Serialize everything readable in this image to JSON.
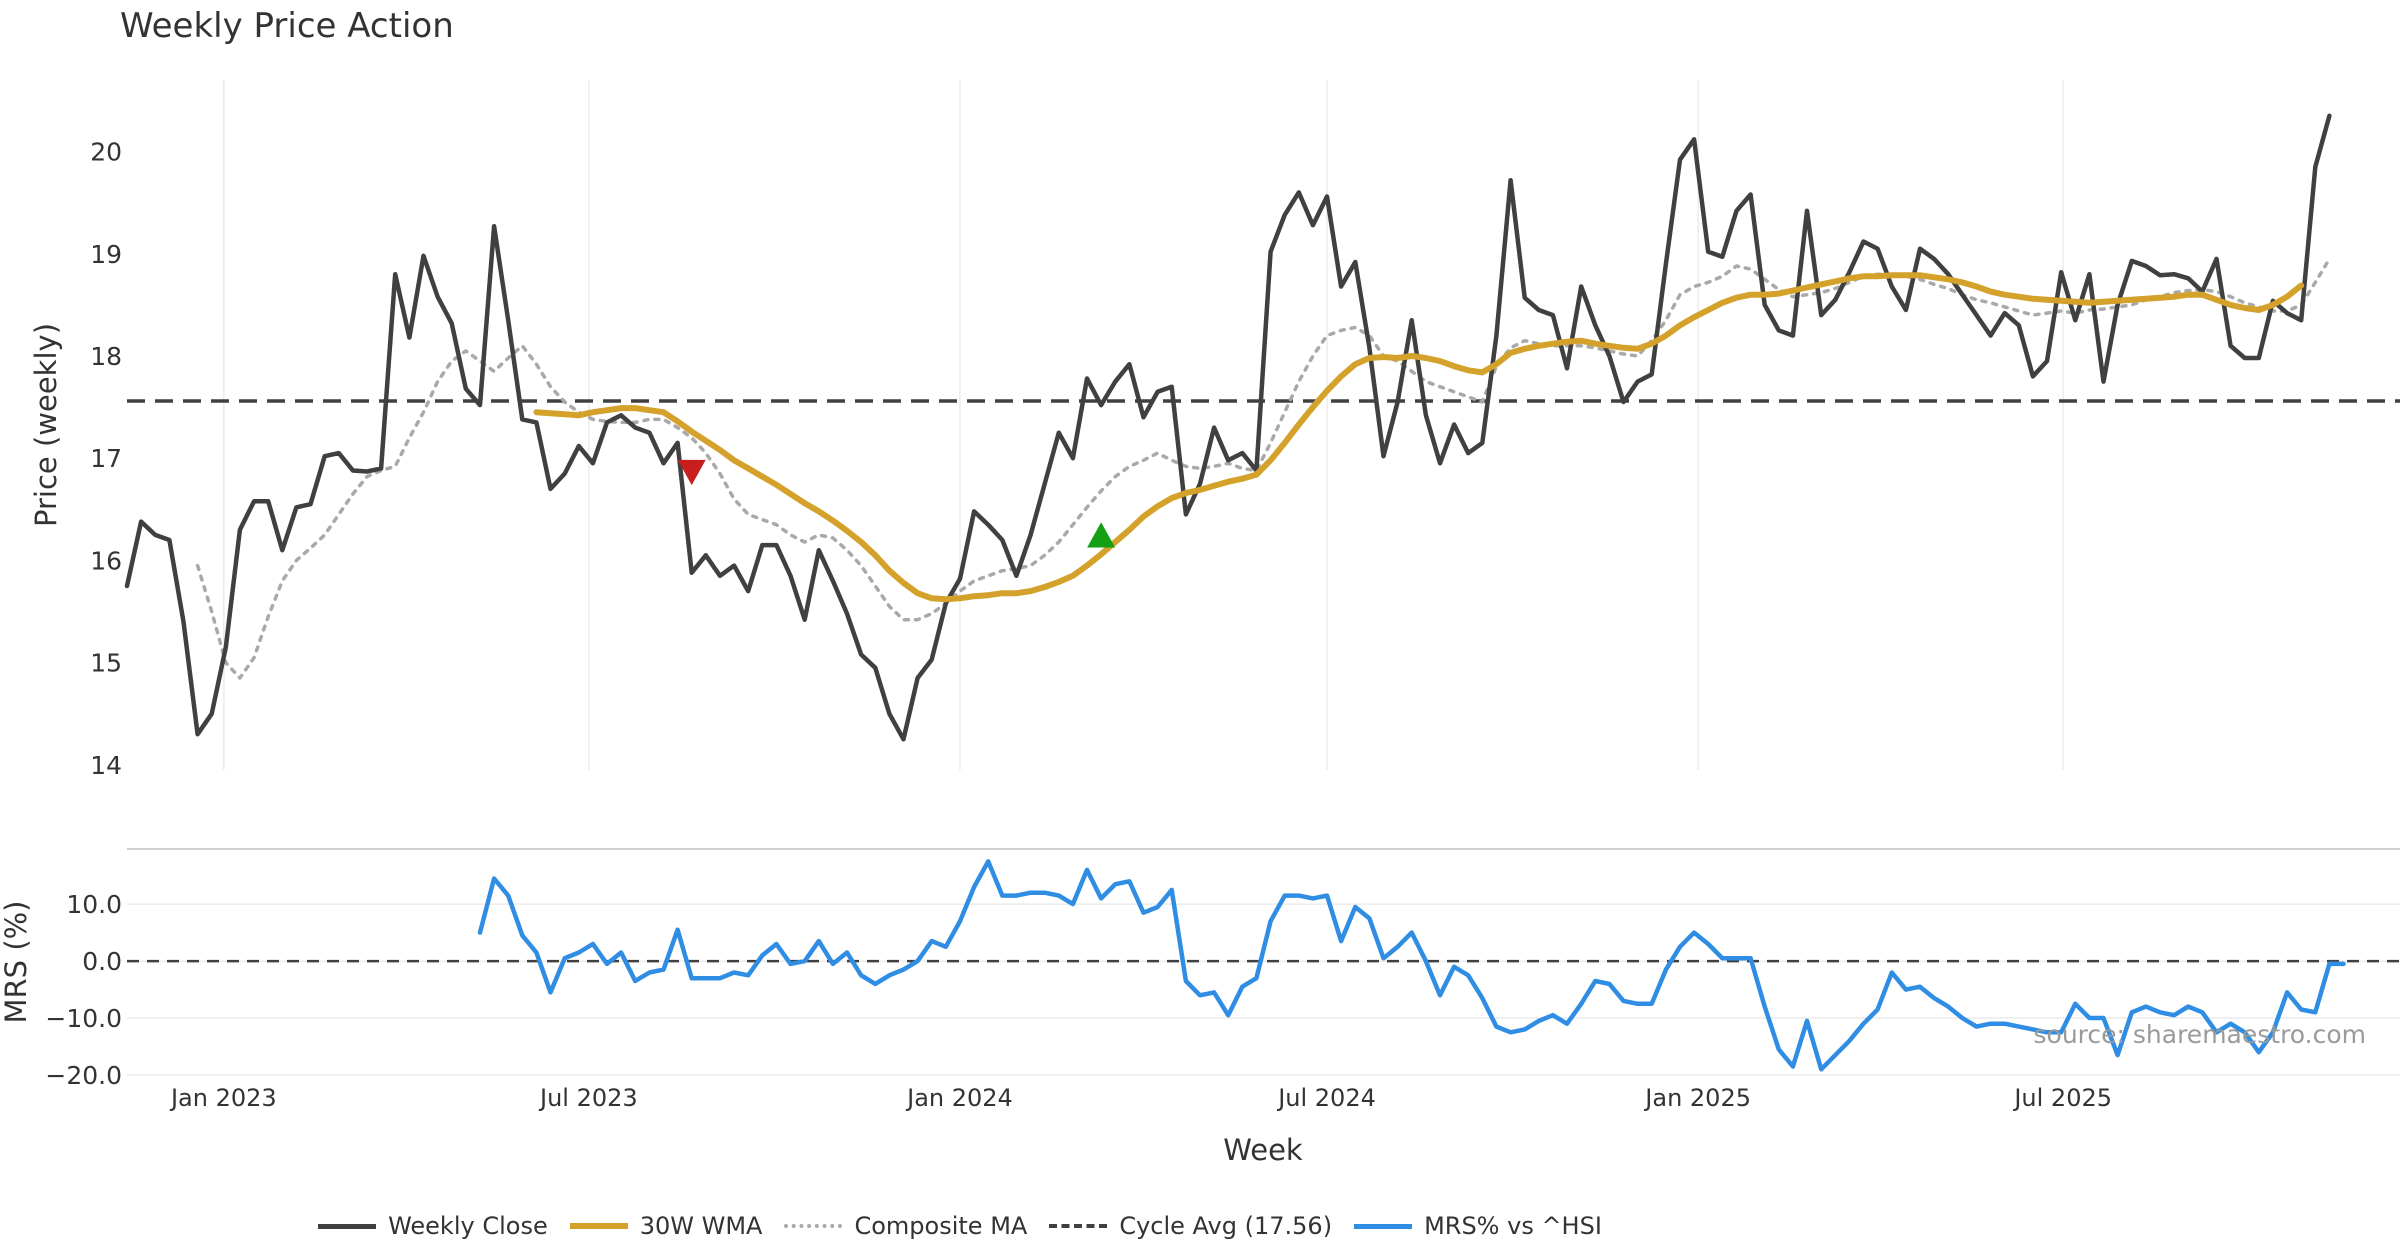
{
  "colors": {
    "weekly_close": "#404040",
    "wma": "#d4a12a",
    "composite": "#a9a9a9",
    "cycle_avg": "#404040",
    "mrs": "#2f8de4",
    "sell_marker": "#c81e1e",
    "buy_marker": "#14a014"
  },
  "chart_data": {
    "type": "line",
    "title": "Weekly Price Action",
    "watermark": "source: sharemaestro.com",
    "xlabel": "Week",
    "x_ticks": [
      "Jan 2023",
      "Jul 2023",
      "Jan 2024",
      "Jul 2024",
      "Jan 2025",
      "Jul 2025"
    ],
    "x_range": [
      "2022-11-14",
      "2025-12-15"
    ],
    "price_panel": {
      "ylabel": "Price (weekly)",
      "ylim": [
        13.95,
        20.7
      ],
      "y_ticks": [
        14,
        15,
        16,
        17,
        18,
        19,
        20
      ],
      "cycle_avg": 17.56,
      "series": [
        {
          "name": "Weekly Close",
          "start": 0,
          "values": [
            15.75,
            16.38,
            16.25,
            16.2,
            15.4,
            14.3,
            14.5,
            15.15,
            16.3,
            16.58,
            16.58,
            16.1,
            16.52,
            16.55,
            17.02,
            17.05,
            16.88,
            16.87,
            16.9,
            18.8,
            18.18,
            18.98,
            18.58,
            18.32,
            17.68,
            17.52,
            19.27,
            18.35,
            17.38,
            17.35,
            16.7,
            16.85,
            17.12,
            16.95,
            17.35,
            17.42,
            17.3,
            17.25,
            16.95,
            17.15,
            15.88,
            16.05,
            15.85,
            15.95,
            15.7,
            16.15,
            16.15,
            15.85,
            15.42,
            16.1,
            15.8,
            15.48,
            15.08,
            14.95,
            14.5,
            14.25,
            14.85,
            15.03,
            15.58,
            15.82,
            16.48,
            16.35,
            16.2,
            15.85,
            16.25,
            16.75,
            17.25,
            17.0,
            17.78,
            17.52,
            17.75,
            17.92,
            17.4,
            17.65,
            17.7,
            16.45,
            16.75,
            17.3,
            16.98,
            17.05,
            16.88,
            19.02,
            19.38,
            19.6,
            19.28,
            19.56,
            18.68,
            18.92,
            18.08,
            17.02,
            17.55,
            18.35,
            17.42,
            16.95,
            17.33,
            17.05,
            17.15,
            18.2,
            19.72,
            18.57,
            18.45,
            18.4,
            17.88,
            18.68,
            18.3,
            18.0,
            17.55,
            17.75,
            17.82,
            18.9,
            19.92,
            20.12,
            19.02,
            18.97,
            19.42,
            19.58,
            18.5,
            18.25,
            18.2,
            19.42,
            18.4,
            18.55,
            18.82,
            19.12,
            19.05,
            18.68,
            18.45,
            19.05,
            18.95,
            18.8,
            18.6,
            18.4,
            18.2,
            18.42,
            18.3,
            17.8,
            17.95,
            18.82,
            18.35,
            18.8,
            17.75,
            18.5,
            18.93,
            18.88,
            18.79,
            18.8,
            18.76,
            18.63,
            18.95,
            18.1,
            17.98,
            17.98,
            18.54,
            18.42,
            18.35,
            19.85,
            20.35
          ]
        },
        {
          "name": "30W WMA",
          "start": 29,
          "values": [
            17.45,
            17.44,
            17.43,
            17.42,
            17.45,
            17.47,
            17.49,
            17.49,
            17.47,
            17.45,
            17.36,
            17.26,
            17.17,
            17.08,
            16.98,
            16.9,
            16.82,
            16.74,
            16.65,
            16.56,
            16.48,
            16.39,
            16.29,
            16.18,
            16.05,
            15.9,
            15.78,
            15.68,
            15.63,
            15.62,
            15.63,
            15.65,
            15.66,
            15.68,
            15.68,
            15.7,
            15.74,
            15.79,
            15.85,
            15.95,
            16.06,
            16.18,
            16.3,
            16.43,
            16.53,
            16.61,
            16.66,
            16.69,
            16.73,
            16.77,
            16.8,
            16.84,
            16.98,
            17.15,
            17.33,
            17.5,
            17.66,
            17.8,
            17.92,
            17.98,
            17.99,
            17.98,
            18.0,
            17.98,
            17.95,
            17.9,
            17.86,
            17.84,
            17.92,
            18.03,
            18.07,
            18.1,
            18.12,
            18.14,
            18.15,
            18.12,
            18.1,
            18.08,
            18.07,
            18.12,
            18.2,
            18.3,
            18.38,
            18.45,
            18.52,
            18.57,
            18.6,
            18.6,
            18.61,
            18.64,
            18.67,
            18.7,
            18.73,
            18.76,
            18.78,
            18.78,
            18.79,
            18.79,
            18.79,
            18.77,
            18.75,
            18.72,
            18.68,
            18.63,
            18.6,
            18.58,
            18.56,
            18.55,
            18.54,
            18.53,
            18.52,
            18.53,
            18.54,
            18.55,
            18.56,
            18.57,
            18.58,
            18.6,
            18.6,
            18.55,
            18.5,
            18.47,
            18.45,
            18.5,
            18.58,
            18.69
          ]
        },
        {
          "name": "Composite MA",
          "start": 5,
          "values": [
            15.95,
            15.5,
            15.0,
            14.85,
            15.05,
            15.45,
            15.8,
            16.0,
            16.12,
            16.25,
            16.45,
            16.65,
            16.82,
            16.88,
            16.92,
            17.2,
            17.45,
            17.75,
            17.95,
            18.05,
            17.95,
            17.85,
            17.98,
            18.1,
            17.92,
            17.7,
            17.55,
            17.45,
            17.38,
            17.36,
            17.35,
            17.35,
            17.38,
            17.38,
            17.3,
            17.2,
            17.05,
            16.85,
            16.6,
            16.45,
            16.4,
            16.35,
            16.25,
            16.18,
            16.25,
            16.22,
            16.1,
            15.95,
            15.75,
            15.55,
            15.42,
            15.42,
            15.48,
            15.58,
            15.7,
            15.8,
            15.85,
            15.9,
            15.92,
            15.95,
            16.05,
            16.18,
            16.35,
            16.52,
            16.68,
            16.82,
            16.92,
            16.98,
            17.05,
            16.98,
            16.92,
            16.9,
            16.92,
            16.95,
            16.9,
            16.88,
            17.15,
            17.45,
            17.75,
            18.0,
            18.2,
            18.25,
            18.28,
            18.2,
            18.0,
            17.95,
            17.85,
            17.75,
            17.7,
            17.65,
            17.6,
            17.55,
            17.9,
            18.08,
            18.15,
            18.12,
            18.1,
            18.1,
            18.1,
            18.08,
            18.05,
            18.02,
            18.0,
            18.15,
            18.35,
            18.6,
            18.68,
            18.72,
            18.78,
            18.88,
            18.85,
            18.75,
            18.65,
            18.58,
            18.6,
            18.62,
            18.66,
            18.72,
            18.78,
            18.8,
            18.8,
            18.78,
            18.75,
            18.7,
            18.66,
            18.6,
            18.55,
            18.52,
            18.48,
            18.44,
            18.4,
            18.42,
            18.44,
            18.42,
            18.45,
            18.46,
            18.48,
            18.5,
            18.55,
            18.58,
            18.62,
            18.64,
            18.65,
            18.63,
            18.58,
            18.52,
            18.48,
            18.44,
            18.44,
            18.5,
            18.72,
            18.95
          ]
        }
      ],
      "markers": [
        {
          "type": "sell",
          "x": "2023-08-21",
          "y": 16.86
        },
        {
          "type": "buy",
          "x": "2024-03-11",
          "y": 16.25
        }
      ]
    },
    "mrs_panel": {
      "ylabel": "MRS (%)",
      "ylim": [
        -20.0,
        19.5
      ],
      "y_ticks": [
        10.0,
        0.0,
        -10.0,
        -20.0
      ],
      "y_tick_labels": [
        "10.0",
        "0.0",
        "−10.0",
        "−20.0"
      ],
      "zero_line": 0.0,
      "series": [
        {
          "name": "MRS% vs ^HSI",
          "start": 25,
          "values": [
            5.0,
            14.5,
            11.5,
            4.5,
            1.5,
            -5.5,
            0.5,
            1.5,
            3.0,
            -0.5,
            1.5,
            -3.5,
            -2.0,
            -1.5,
            5.5,
            -3.0,
            -3.0,
            -3.0,
            -2.0,
            -2.5,
            1.0,
            3.0,
            -0.5,
            0.0,
            3.5,
            -0.5,
            1.5,
            -2.5,
            -4.0,
            -2.5,
            -1.5,
            0.0,
            3.5,
            2.5,
            7.0,
            13.0,
            17.5,
            11.5,
            11.5,
            12.0,
            12.0,
            11.5,
            10.0,
            16.0,
            11.0,
            13.5,
            14.0,
            8.5,
            9.5,
            12.5,
            -3.5,
            -6.0,
            -5.5,
            -9.5,
            -4.5,
            -3.0,
            7.0,
            11.5,
            11.5,
            11.0,
            11.5,
            3.5,
            9.5,
            7.5,
            0.5,
            2.5,
            5.0,
            0.0,
            -6.0,
            -1.0,
            -2.5,
            -6.5,
            -11.5,
            -12.5,
            -12.0,
            -10.5,
            -9.5,
            -11.0,
            -7.5,
            -3.5,
            -4.0,
            -7.0,
            -7.5,
            -7.5,
            -1.5,
            2.5,
            5.0,
            3.0,
            0.5,
            0.5,
            0.5,
            -8.0,
            -15.5,
            -18.5,
            -10.5,
            -19.0,
            -16.5,
            -14.0,
            -11.0,
            -8.5,
            -2.0,
            -5.0,
            -4.5,
            -6.5,
            -8.0,
            -10.0,
            -11.5,
            -11.0,
            -11.0,
            -11.5,
            -12.0,
            -12.5,
            -12.5,
            -7.5,
            -10.0,
            -10.0,
            -16.5,
            -9.0,
            -8.0,
            -9.0,
            -9.5,
            -8.0,
            -9.0,
            -12.5,
            -11.0,
            -12.5,
            -16.0,
            -12.5,
            -5.5,
            -8.5,
            -9.0,
            -0.5,
            -0.5
          ]
        }
      ]
    },
    "legend": [
      {
        "label": "Weekly Close",
        "style": "solid"
      },
      {
        "label": "30W WMA",
        "style": "solid-thick"
      },
      {
        "label": "Composite MA",
        "style": "dotted"
      },
      {
        "label": "Cycle Avg (17.56)",
        "style": "dashed"
      },
      {
        "label": "MRS% vs ^HSI",
        "style": "solid"
      }
    ]
  }
}
